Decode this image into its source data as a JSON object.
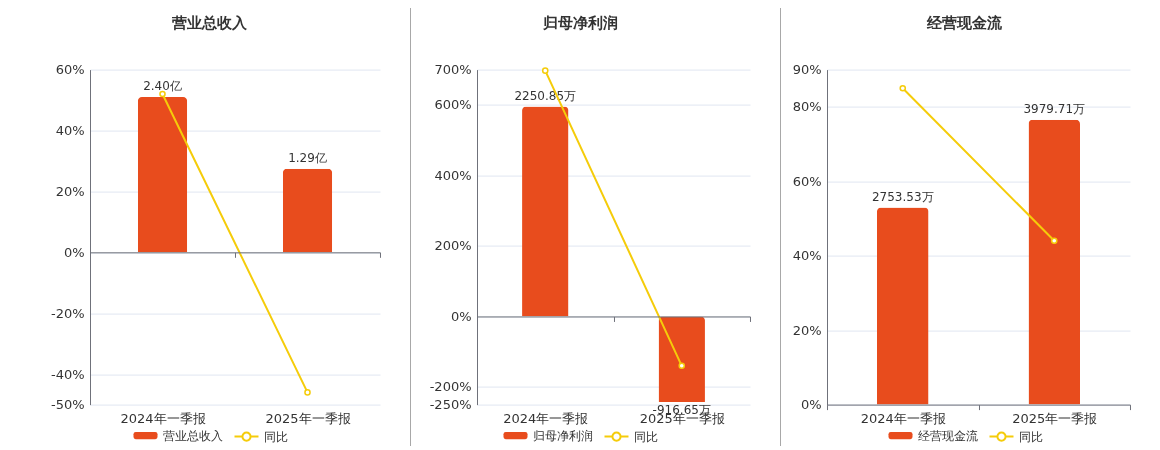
{
  "chart_data": [
    {
      "type": "bar",
      "title": "营业总收入",
      "categories": [
        "2024年一季报",
        "2025年一季报"
      ],
      "series": [
        {
          "name": "营业总收入",
          "color": "#e84c1d",
          "values": [
            2.4,
            1.29
          ],
          "value_labels": [
            "2.40亿",
            "1.29亿"
          ],
          "axis": "y2"
        },
        {
          "name": "同比",
          "type": "line",
          "color": "#f5cc0a",
          "values": [
            52,
            -46
          ]
        }
      ],
      "ylim": [
        -50,
        60
      ],
      "yticks": [
        {
          "value": 60,
          "label": "60%"
        },
        {
          "value": 40,
          "label": "40%"
        },
        {
          "value": 20,
          "label": "20%"
        },
        {
          "value": 0,
          "label": "0%"
        },
        {
          "value": -20,
          "label": "-20%"
        },
        {
          "value": -40,
          "label": "-40%"
        },
        {
          "value": -50,
          "label": "-50%"
        }
      ],
      "grid": "y",
      "legend": "bottom",
      "marker": "circle"
    },
    {
      "type": "bar",
      "title": "归母净利润",
      "categories": [
        "2024年一季报",
        "2025年一季报"
      ],
      "series": [
        {
          "name": "归母净利润",
          "color": "#e84c1d",
          "values": [
            2250.85,
            -916.65
          ],
          "value_labels": [
            "2250.85万",
            "-916.65万"
          ],
          "axis": "y2"
        },
        {
          "name": "同比",
          "type": "line",
          "color": "#f5cc0a",
          "values": [
            697,
            -140
          ]
        }
      ],
      "ylim": [
        -250,
        700
      ],
      "yticks": [
        {
          "value": 700,
          "label": "700%"
        },
        {
          "value": 600,
          "label": "600%"
        },
        {
          "value": 400,
          "label": "400%"
        },
        {
          "value": 200,
          "label": "200%"
        },
        {
          "value": 0,
          "label": "0%"
        },
        {
          "value": -200,
          "label": "-200%"
        },
        {
          "value": -250,
          "label": "-250%"
        }
      ],
      "grid": "y",
      "legend": "bottom",
      "marker": "circle"
    },
    {
      "type": "bar",
      "title": "经营现金流",
      "categories": [
        "2024年一季报",
        "2025年一季报"
      ],
      "series": [
        {
          "name": "经营现金流",
          "color": "#e84c1d",
          "values": [
            2753.53,
            3979.71
          ],
          "value_labels": [
            "2753.53万",
            "3979.71万"
          ],
          "axis": "y2"
        },
        {
          "name": "同比",
          "type": "line",
          "color": "#f5cc0a",
          "values": [
            85,
            44
          ]
        }
      ],
      "ylim": [
        0,
        90
      ],
      "yticks": [
        {
          "value": 90,
          "label": "90%"
        },
        {
          "value": 80,
          "label": "80%"
        },
        {
          "value": 60,
          "label": "60%"
        },
        {
          "value": 40,
          "label": "40%"
        },
        {
          "value": 20,
          "label": "20%"
        },
        {
          "value": 0,
          "label": "0%"
        }
      ],
      "grid": "y",
      "legend": "bottom",
      "marker": "circle"
    }
  ]
}
